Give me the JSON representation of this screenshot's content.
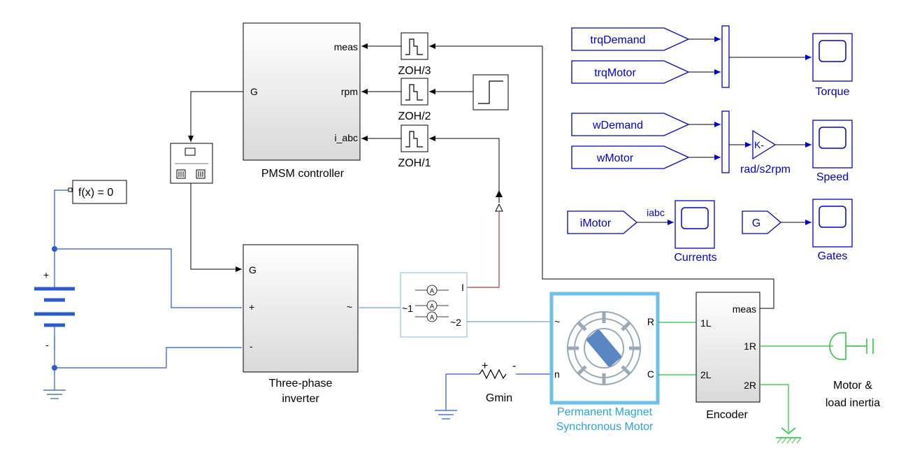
{
  "controller": {
    "name": "PMSM controller",
    "ports_in": {
      "g": "G"
    },
    "ports_out": {
      "meas": "meas",
      "rpm": "rpm",
      "iabc": "i_abc"
    }
  },
  "zoh": {
    "zoh3": "ZOH/3",
    "zoh2": "ZOH/2",
    "zoh1": "ZOH/1"
  },
  "solver": {
    "label": "f(x) = 0"
  },
  "battery": {
    "plus": "+",
    "minus": "-"
  },
  "inverter": {
    "name_line1": "Three-phase",
    "name_line2": "inverter",
    "port_g": "G",
    "port_plus": "+",
    "port_minus": "-",
    "port_ac": "~"
  },
  "sensor": {
    "port_in": "~1",
    "port_out": "~2",
    "port_i": "I"
  },
  "gmin": {
    "name": "Gmin",
    "plus": "+",
    "minus": "-"
  },
  "motor": {
    "name_line1": "Permanent Magnet",
    "name_line2": "Synchronous Motor",
    "port_ac": "~",
    "port_n": "n",
    "port_r": "R",
    "port_c": "C"
  },
  "encoder": {
    "name": "Encoder",
    "port_1l": "1L",
    "port_2l": "2L",
    "port_meas": "meas",
    "port_1r": "1R",
    "port_2r": "2R"
  },
  "inertia": {
    "line1": "Motor &",
    "line2": "load inertia"
  },
  "tags": {
    "trq_demand": "trqDemand",
    "trq_motor": "trqMotor",
    "w_demand": "wDemand",
    "w_motor": "wMotor",
    "i_motor": "iMotor",
    "g": "G"
  },
  "gain": {
    "label": "K-",
    "name": "rad/s2rpm"
  },
  "scopes": {
    "torque": "Torque",
    "speed": "Speed",
    "currents": "Currents",
    "gates": "Gates"
  },
  "signals": {
    "iabc": "iabc"
  },
  "colors": {
    "signal_blue": "#0000cc",
    "electrical_blue": "#2a5bcc",
    "electrical_light": "#6aa3d9",
    "mechanical_green": "#22c43a",
    "physical_red": "#b03b3b",
    "highlight_cyan": "#29a3d9"
  }
}
